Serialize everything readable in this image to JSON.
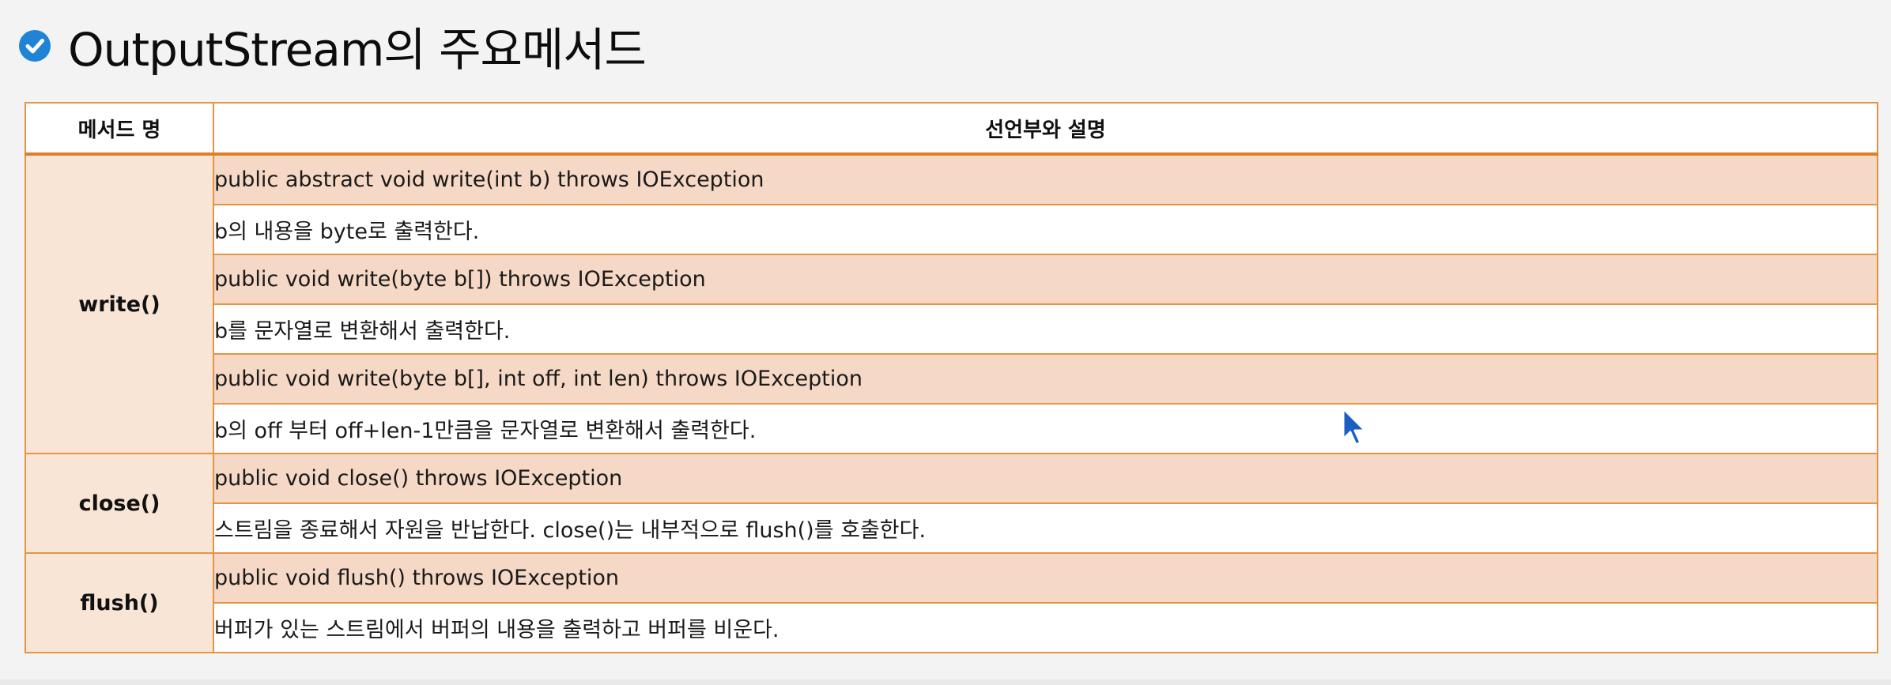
{
  "title": "OutputStream의 주요메서드",
  "table": {
    "headers": {
      "method": "메서드 명",
      "declaration": "선언부와 설명"
    },
    "groups": [
      {
        "method": "write()",
        "entries": [
          {
            "declaration": "public abstract void write(int b) throws IOException",
            "description": "b의 내용을 byte로 출력한다."
          },
          {
            "declaration": "public void write(byte b[]) throws IOException",
            "description": "b를 문자열로 변환해서 출력한다."
          },
          {
            "declaration": "public void write(byte b[], int off, int len) throws IOException",
            "description": "b의 off 부터 off+len-1만큼을 문자열로 변환해서 출력한다."
          }
        ]
      },
      {
        "method": "close()",
        "entries": [
          {
            "declaration": "public void close() throws IOException",
            "description": "스트림을 종료해서 자원을 반납한다. close()는 내부적으로 flush()를 호출한다."
          }
        ]
      },
      {
        "method": "flush()",
        "entries": [
          {
            "declaration": "public void flush() throws IOException",
            "description": "버퍼가 있는 스트림에서 버퍼의 내용을 출력하고 버퍼를 비운다."
          }
        ]
      }
    ]
  },
  "colors": {
    "accent_border": "#e59443",
    "declaration_row": "#f5d8c5",
    "method_cell": "#f9e5d6",
    "check_icon": "#1f83d6"
  },
  "icons": {
    "title_marker": "check-circle-icon",
    "pointer": "mouse-cursor-icon"
  }
}
